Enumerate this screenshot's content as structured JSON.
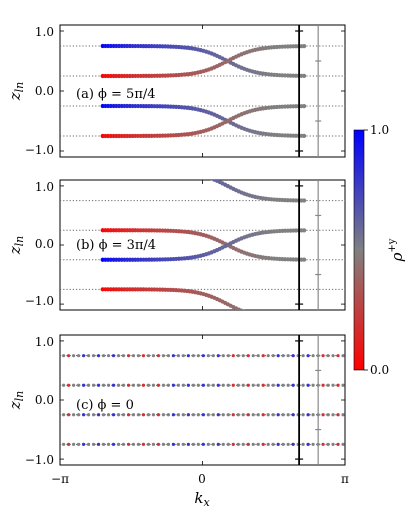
{
  "chart_data": [
    {
      "type": "scatter",
      "panel": "a",
      "annotation": "(a) ϕ = 5π/4",
      "ylabel": "z_ln",
      "ytick_labels": [
        "1.0",
        "0.0",
        "−1.0"
      ],
      "ylim": [
        -1.1,
        1.1
      ],
      "xlim": [
        -3.1416,
        3.1416
      ],
      "levels": [
        0.75,
        0.25,
        -0.25,
        -0.75
      ],
      "dotted_lines": true,
      "vertical_lines": [
        {
          "x": 2.13,
          "color": "#000000"
        },
        {
          "x": 2.55,
          "color": "#888888"
        }
      ],
      "series": [
        {
          "from": 0.75,
          "to": 0.25,
          "x_start": -2.2,
          "x_end": 2.25,
          "x_cross": 0.55,
          "rho_left": 1.0,
          "rho_right": 0.5
        },
        {
          "from": 0.25,
          "to": 0.75,
          "x_start": -2.2,
          "x_end": 2.25,
          "x_cross": 0.55,
          "rho_left": 0.0,
          "rho_right": 0.5
        },
        {
          "from": -0.25,
          "to": -0.75,
          "x_start": -2.2,
          "x_end": 2.25,
          "x_cross": 0.55,
          "rho_left": 1.0,
          "rho_right": 0.5
        },
        {
          "from": -0.75,
          "to": -0.25,
          "x_start": -2.2,
          "x_end": 2.25,
          "x_cross": 0.55,
          "rho_left": 0.0,
          "rho_right": 0.5
        }
      ]
    },
    {
      "type": "scatter",
      "panel": "b",
      "annotation": "(b) ϕ = 3π/4",
      "ylabel": "z_ln",
      "ytick_labels": [
        "1.0",
        "0.0",
        "−1.0"
      ],
      "ylim": [
        -1.1,
        1.1
      ],
      "xlim": [
        -3.1416,
        3.1416
      ],
      "levels": [
        0.75,
        0.25,
        -0.25,
        -0.75
      ],
      "dotted_lines": true,
      "vertical_lines": [
        {
          "x": 2.13,
          "color": "#000000"
        },
        {
          "x": 2.55,
          "color": "#888888"
        }
      ],
      "series": [
        {
          "from": 1.25,
          "to": 0.75,
          "x_start": -2.2,
          "x_end": 2.25,
          "x_cross": 0.55,
          "rho_left": 1.0,
          "rho_right": 0.5
        },
        {
          "from": 0.25,
          "to": -0.25,
          "x_start": -2.2,
          "x_end": 2.25,
          "x_cross": 0.55,
          "rho_left": 0.0,
          "rho_right": 0.5
        },
        {
          "from": -0.25,
          "to": 0.25,
          "x_start": -2.2,
          "x_end": 2.25,
          "x_cross": 0.55,
          "rho_left": 1.0,
          "rho_right": 0.5
        },
        {
          "from": -0.75,
          "to": -1.25,
          "x_start": -2.2,
          "x_end": 2.25,
          "x_cross": 0.55,
          "rho_left": 0.0,
          "rho_right": 0.5
        }
      ]
    },
    {
      "type": "scatter",
      "panel": "c",
      "annotation": "(c) ϕ = 0",
      "ylabel": "z_ln",
      "xlabel": "k_x",
      "ytick_labels": [
        "1.0",
        "0.0",
        "−1.0"
      ],
      "xtick_labels": [
        "−π",
        "0",
        "π"
      ],
      "ylim": [
        -1.1,
        1.1
      ],
      "xlim": [
        -3.1416,
        3.1416
      ],
      "levels": [
        0.75,
        0.25,
        -0.25,
        -0.75
      ],
      "dotted_lines": true,
      "vertical_lines": [
        {
          "x": 2.13,
          "color": "#000000"
        },
        {
          "x": 2.55,
          "color": "#888888"
        }
      ],
      "series": [
        {
          "flat": true,
          "level": 0.75,
          "rho": 0.5
        },
        {
          "flat": true,
          "level": 0.25,
          "rho": 0.5
        },
        {
          "flat": true,
          "level": -0.25,
          "rho": 0.5
        },
        {
          "flat": true,
          "level": -0.75,
          "rho": 0.5
        }
      ]
    }
  ],
  "colorbar": {
    "label": "ρ^{+y}",
    "tick_labels": [
      "1.0",
      "0.0"
    ],
    "range": [
      0.0,
      1.0
    ],
    "colors": {
      "top": "#0000ff",
      "middle": "#808080",
      "bottom": "#ff0000"
    }
  }
}
